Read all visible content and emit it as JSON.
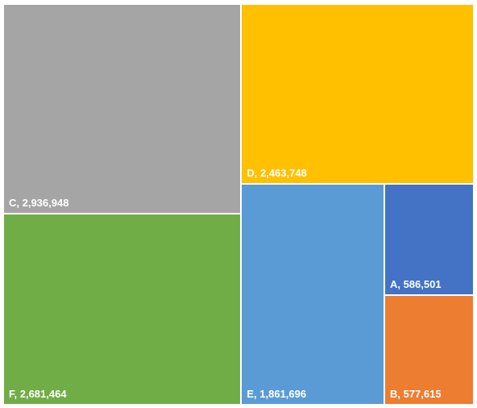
{
  "chart_data": {
    "type": "treemap",
    "title": "",
    "items": [
      {
        "name": "C",
        "value": 2936948,
        "label": "C,  2,936,948",
        "color": "#A5A5A5"
      },
      {
        "name": "F",
        "value": 2681464,
        "label": "F,  2,681,464",
        "color": "#70AD47"
      },
      {
        "name": "D",
        "value": 2463748,
        "label": "D,  2,463,748",
        "color": "#FFC000"
      },
      {
        "name": "E",
        "value": 1861696,
        "label": "E,  1,861,696",
        "color": "#5B9BD5"
      },
      {
        "name": "A",
        "value": 586501,
        "label": "A,  586,501",
        "color": "#4472C4"
      },
      {
        "name": "B",
        "value": 577615,
        "label": "B,  577,615",
        "color": "#ED7D31"
      }
    ]
  }
}
